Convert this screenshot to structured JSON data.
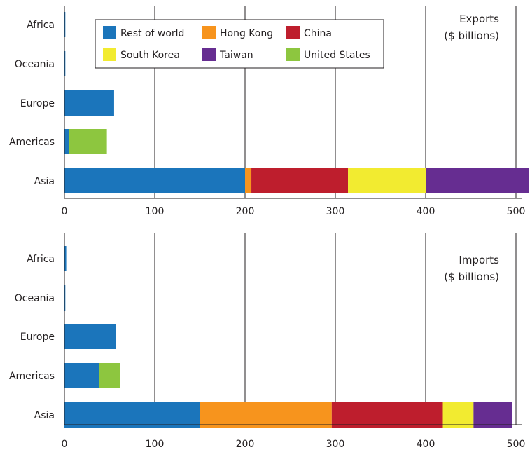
{
  "colors": {
    "Rest of world": "#1b75bb",
    "Hong Kong": "#f7941d",
    "China": "#be1e2d",
    "South Korea": "#f2eb30",
    "Taiwan": "#662d91",
    "United States": "#8dc63f"
  },
  "legend": {
    "items": [
      "Rest of world",
      "Hong Kong",
      "China",
      "South Korea",
      "Taiwan",
      "United States"
    ]
  },
  "chart_data": [
    {
      "type": "bar",
      "orientation": "horizontal",
      "stacked": true,
      "title": "Exports",
      "subtitle": "($ billions)",
      "categories": [
        "Africa",
        "Oceania",
        "Europe",
        "Americas",
        "Asia"
      ],
      "xlim": [
        0,
        515
      ],
      "xticks": [
        0,
        100,
        200,
        300,
        400,
        500
      ],
      "grid": "vertical",
      "series": [
        {
          "name": "Rest of world",
          "values": [
            1,
            1,
            55,
            5,
            200
          ]
        },
        {
          "name": "Hong Kong",
          "values": [
            0,
            0,
            0,
            0,
            7
          ]
        },
        {
          "name": "China",
          "values": [
            0,
            0,
            0,
            0,
            107
          ]
        },
        {
          "name": "South Korea",
          "values": [
            0,
            0,
            0,
            0,
            86
          ]
        },
        {
          "name": "Taiwan",
          "values": [
            0,
            0,
            0,
            0,
            114
          ]
        },
        {
          "name": "United States",
          "values": [
            0,
            0,
            0,
            42,
            0
          ]
        }
      ]
    },
    {
      "type": "bar",
      "orientation": "horizontal",
      "stacked": true,
      "title": "Imports",
      "subtitle": "($ billions)",
      "categories": [
        "Africa",
        "Oceania",
        "Europe",
        "Americas",
        "Asia"
      ],
      "xlim": [
        0,
        515
      ],
      "xticks": [
        0,
        100,
        200,
        300,
        400,
        500
      ],
      "grid": "vertical",
      "series": [
        {
          "name": "Rest of world",
          "values": [
            2,
            1,
            57,
            38,
            150
          ]
        },
        {
          "name": "Hong Kong",
          "values": [
            0,
            0,
            0,
            0,
            146
          ]
        },
        {
          "name": "China",
          "values": [
            0,
            0,
            0,
            0,
            123
          ]
        },
        {
          "name": "South Korea",
          "values": [
            0,
            0,
            0,
            0,
            34
          ]
        },
        {
          "name": "Taiwan",
          "values": [
            0,
            0,
            0,
            0,
            43
          ]
        },
        {
          "name": "United States",
          "values": [
            0,
            0,
            0,
            24,
            0
          ]
        }
      ]
    }
  ]
}
